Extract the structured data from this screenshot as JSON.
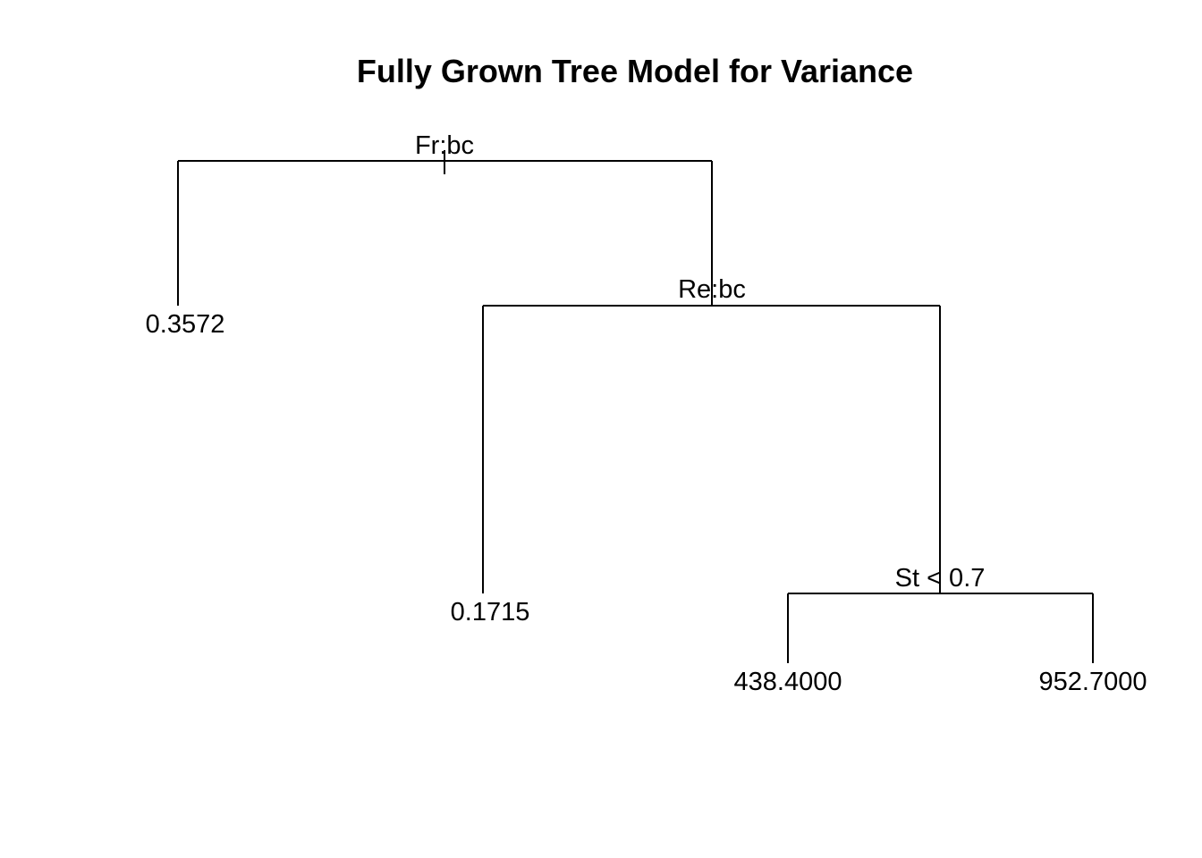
{
  "title": "Fully Grown Tree Model for Variance",
  "tree": {
    "splits": [
      {
        "id": "root",
        "label": "Fr:bc"
      },
      {
        "id": "right",
        "label": "Re:bc"
      },
      {
        "id": "right-right",
        "label": "St < 0.7"
      }
    ],
    "leaves": [
      {
        "id": "leaf-1",
        "value": "0.3572"
      },
      {
        "id": "leaf-2",
        "value": "0.1715"
      },
      {
        "id": "leaf-3",
        "value": "438.4000"
      },
      {
        "id": "leaf-4",
        "value": "952.7000"
      }
    ]
  },
  "colors": {
    "line": "#000000",
    "text": "#000000",
    "background": "#ffffff"
  }
}
